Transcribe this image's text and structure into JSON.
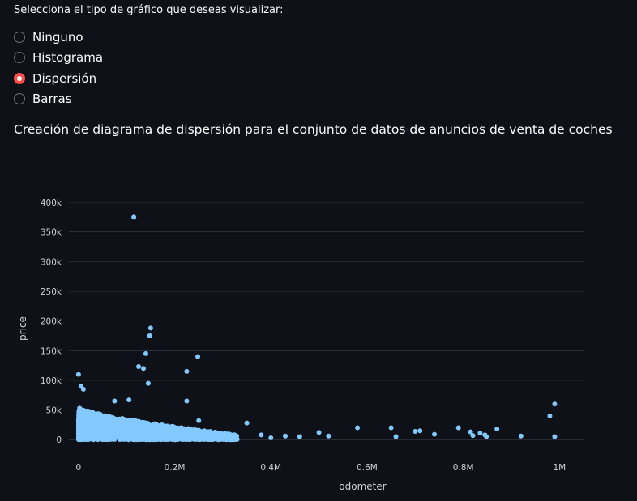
{
  "prompt": "Selecciona el tipo de gráfico que deseas visualizar:",
  "radio": {
    "options": [
      "Ninguno",
      "Histograma",
      "Dispersión",
      "Barras"
    ],
    "selected": "Dispersión"
  },
  "subheader": "Creación de diagrama de dispersión para el conjunto de datos de anuncios de venta de coches",
  "colors": {
    "accent": "#ff4b4b",
    "marker": "#83c9ff",
    "background": "#0e1117",
    "grid": "#31333f"
  },
  "chart_data": {
    "type": "scatter",
    "xlabel": "odometer",
    "ylabel": "price",
    "xlim": [
      -20000,
      1050000
    ],
    "ylim": [
      -12000,
      400000
    ],
    "xticks": [
      0,
      200000,
      400000,
      600000,
      800000,
      1000000
    ],
    "xtick_labels": [
      "0",
      "0.2M",
      "0.4M",
      "0.6M",
      "0.8M",
      "1M"
    ],
    "yticks": [
      0,
      50000,
      100000,
      150000,
      200000,
      250000,
      300000,
      350000,
      400000
    ],
    "ytick_labels": [
      "0",
      "50k",
      "100k",
      "150k",
      "200k",
      "250k",
      "300k",
      "350k",
      "400k"
    ],
    "grid": true,
    "dense_cluster": {
      "x_range": [
        0,
        330000
      ],
      "y_max_at_x0": 55000,
      "y_max_at_xmax": 8000
    },
    "outliers": [
      [
        115000,
        375000
      ],
      [
        150000,
        188000
      ],
      [
        148000,
        175000
      ],
      [
        140000,
        145000
      ],
      [
        248000,
        140000
      ],
      [
        125000,
        123000
      ],
      [
        135000,
        120000
      ],
      [
        225000,
        115000
      ],
      [
        0,
        110000
      ],
      [
        145000,
        95000
      ],
      [
        5000,
        90000
      ],
      [
        10000,
        85000
      ],
      [
        105000,
        67000
      ],
      [
        75000,
        65000
      ],
      [
        225000,
        65000
      ],
      [
        250000,
        32000
      ],
      [
        350000,
        28000
      ],
      [
        580000,
        20000
      ],
      [
        650000,
        20000
      ],
      [
        700000,
        14000
      ],
      [
        710000,
        15000
      ],
      [
        740000,
        9000
      ],
      [
        790000,
        20000
      ],
      [
        815000,
        13000
      ],
      [
        820000,
        7000
      ],
      [
        835000,
        11000
      ],
      [
        845000,
        8000
      ],
      [
        848000,
        5000
      ],
      [
        870000,
        18000
      ],
      [
        920000,
        6000
      ],
      [
        980000,
        40000
      ],
      [
        990000,
        60000
      ],
      [
        990000,
        5000
      ],
      [
        660000,
        5000
      ],
      [
        500000,
        12000
      ],
      [
        520000,
        6000
      ],
      [
        460000,
        5000
      ],
      [
        430000,
        6000
      ],
      [
        400000,
        3000
      ],
      [
        380000,
        8000
      ]
    ]
  }
}
